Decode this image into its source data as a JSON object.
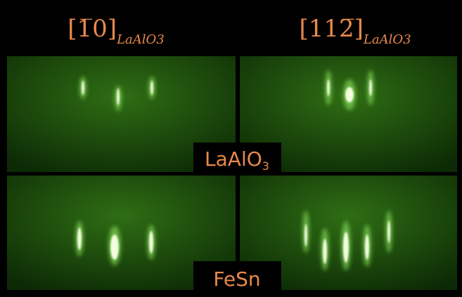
{
  "headers": [
    {
      "direction": "[1̅0]",
      "subscript": "LaAlO3"
    },
    {
      "direction": "[112̅]",
      "subscript": "LaAlO3"
    }
  ],
  "rows": [
    {
      "label": "LaAlO",
      "subscript": "3"
    },
    {
      "label": "FeSn"
    }
  ]
}
